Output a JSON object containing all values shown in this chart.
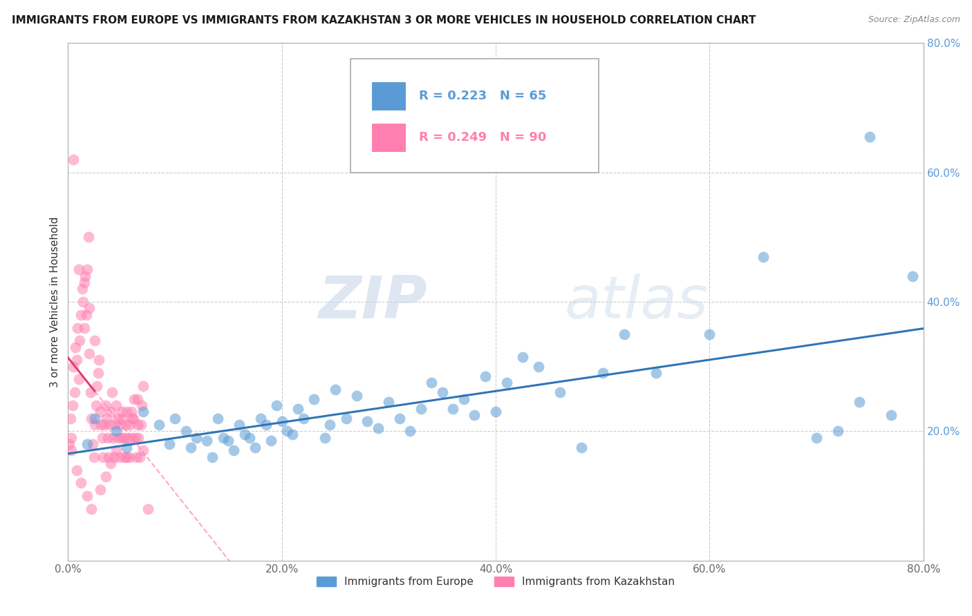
{
  "title": "IMMIGRANTS FROM EUROPE VS IMMIGRANTS FROM KAZAKHSTAN 3 OR MORE VEHICLES IN HOUSEHOLD CORRELATION CHART",
  "source": "Source: ZipAtlas.com",
  "ylabel": "3 or more Vehicles in Household",
  "xlim": [
    0.0,
    0.8
  ],
  "ylim": [
    0.0,
    0.8
  ],
  "xticks": [
    0.0,
    0.2,
    0.4,
    0.6,
    0.8
  ],
  "yticks": [
    0.0,
    0.2,
    0.4,
    0.6,
    0.8
  ],
  "xticklabels": [
    "0.0%",
    "20.0%",
    "40.0%",
    "60.0%",
    "80.0%"
  ],
  "yticklabels_right": [
    "",
    "20.0%",
    "40.0%",
    "60.0%",
    "80.0%"
  ],
  "europe_color": "#5b9bd5",
  "europe_line_color": "#2e75b6",
  "kazakhstan_color": "#ff80b0",
  "kazakhstan_line_color": "#e0406a",
  "europe_R": 0.223,
  "europe_N": 65,
  "kazakhstan_R": 0.249,
  "kazakhstan_N": 90,
  "legend_label_europe": "Immigrants from Europe",
  "legend_label_kazakhstan": "Immigrants from Kazakhstan",
  "watermark_zip": "ZIP",
  "watermark_atlas": "atlas",
  "background_color": "#ffffff",
  "grid_color": "#cccccc",
  "right_tick_color": "#5b9bd5",
  "europe_x": [
    0.018,
    0.025,
    0.045,
    0.055,
    0.07,
    0.085,
    0.095,
    0.1,
    0.11,
    0.115,
    0.12,
    0.13,
    0.135,
    0.14,
    0.145,
    0.15,
    0.155,
    0.16,
    0.165,
    0.17,
    0.175,
    0.18,
    0.185,
    0.19,
    0.195,
    0.2,
    0.205,
    0.21,
    0.215,
    0.22,
    0.23,
    0.24,
    0.245,
    0.25,
    0.26,
    0.27,
    0.28,
    0.29,
    0.3,
    0.31,
    0.32,
    0.33,
    0.34,
    0.35,
    0.36,
    0.37,
    0.38,
    0.39,
    0.4,
    0.41,
    0.425,
    0.44,
    0.46,
    0.48,
    0.5,
    0.52,
    0.55,
    0.6,
    0.65,
    0.7,
    0.72,
    0.74,
    0.75,
    0.77,
    0.79
  ],
  "europe_y": [
    0.18,
    0.22,
    0.2,
    0.175,
    0.23,
    0.21,
    0.18,
    0.22,
    0.2,
    0.175,
    0.19,
    0.185,
    0.16,
    0.22,
    0.19,
    0.185,
    0.17,
    0.21,
    0.195,
    0.19,
    0.175,
    0.22,
    0.21,
    0.185,
    0.24,
    0.215,
    0.2,
    0.195,
    0.235,
    0.22,
    0.25,
    0.19,
    0.21,
    0.265,
    0.22,
    0.255,
    0.215,
    0.205,
    0.245,
    0.22,
    0.2,
    0.235,
    0.275,
    0.26,
    0.235,
    0.25,
    0.225,
    0.285,
    0.23,
    0.275,
    0.315,
    0.3,
    0.26,
    0.175,
    0.29,
    0.35,
    0.29,
    0.35,
    0.47,
    0.19,
    0.2,
    0.245,
    0.655,
    0.225,
    0.44
  ],
  "kaz_x": [
    0.001,
    0.002,
    0.003,
    0.004,
    0.005,
    0.006,
    0.007,
    0.008,
    0.009,
    0.01,
    0.011,
    0.012,
    0.013,
    0.014,
    0.015,
    0.016,
    0.017,
    0.018,
    0.019,
    0.02,
    0.021,
    0.022,
    0.023,
    0.024,
    0.025,
    0.026,
    0.027,
    0.028,
    0.029,
    0.03,
    0.031,
    0.032,
    0.033,
    0.034,
    0.035,
    0.036,
    0.037,
    0.038,
    0.039,
    0.04,
    0.041,
    0.042,
    0.043,
    0.044,
    0.045,
    0.046,
    0.047,
    0.048,
    0.049,
    0.05,
    0.051,
    0.052,
    0.053,
    0.054,
    0.055,
    0.056,
    0.057,
    0.058,
    0.059,
    0.06,
    0.061,
    0.062,
    0.063,
    0.064,
    0.065,
    0.066,
    0.067,
    0.068,
    0.069,
    0.07,
    0.005,
    0.01,
    0.015,
    0.02,
    0.025,
    0.003,
    0.008,
    0.012,
    0.018,
    0.022,
    0.03,
    0.035,
    0.04,
    0.045,
    0.05,
    0.055,
    0.06,
    0.065,
    0.07,
    0.075
  ],
  "kaz_y": [
    0.18,
    0.22,
    0.19,
    0.24,
    0.3,
    0.26,
    0.33,
    0.31,
    0.36,
    0.28,
    0.34,
    0.38,
    0.42,
    0.4,
    0.36,
    0.44,
    0.38,
    0.45,
    0.5,
    0.32,
    0.26,
    0.22,
    0.18,
    0.16,
    0.21,
    0.24,
    0.27,
    0.29,
    0.31,
    0.23,
    0.21,
    0.19,
    0.16,
    0.21,
    0.24,
    0.22,
    0.19,
    0.16,
    0.21,
    0.23,
    0.26,
    0.19,
    0.16,
    0.21,
    0.24,
    0.22,
    0.19,
    0.16,
    0.21,
    0.23,
    0.22,
    0.19,
    0.16,
    0.21,
    0.23,
    0.19,
    0.16,
    0.21,
    0.23,
    0.19,
    0.22,
    0.25,
    0.19,
    0.16,
    0.21,
    0.19,
    0.16,
    0.21,
    0.24,
    0.27,
    0.62,
    0.45,
    0.43,
    0.39,
    0.34,
    0.17,
    0.14,
    0.12,
    0.1,
    0.08,
    0.11,
    0.13,
    0.15,
    0.17,
    0.19,
    0.16,
    0.22,
    0.25,
    0.17,
    0.08
  ]
}
